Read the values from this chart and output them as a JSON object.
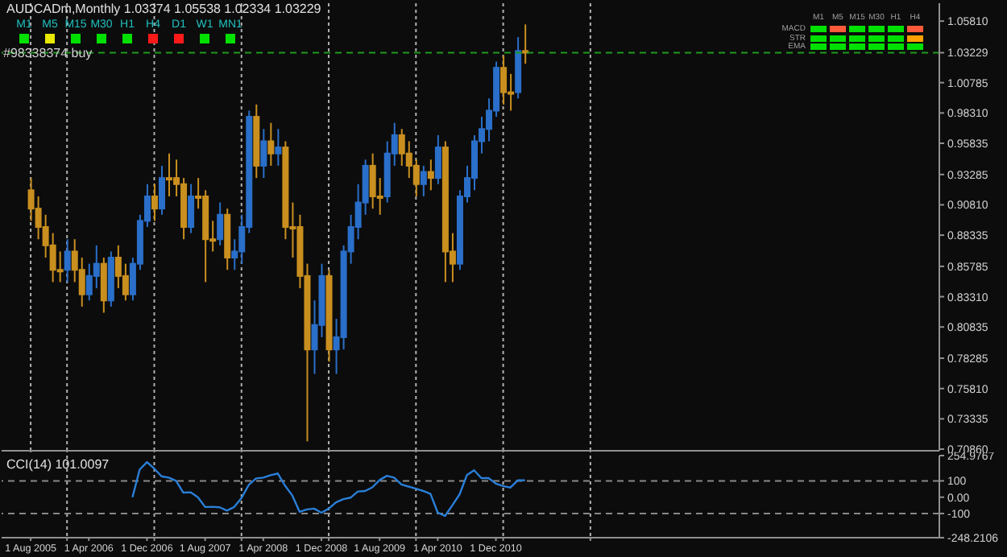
{
  "chart_data": [
    {
      "type": "candlestick",
      "title": "AUDCADm,Monthly  1.03374 1.05538 1.02334 1.03229",
      "annotations": [
        "M1",
        "M5",
        "M15",
        "M30",
        "H1",
        "H4",
        "D1",
        "W1",
        "MN1",
        "M1",
        "M5",
        "M15",
        "M30",
        "H1",
        "H4",
        "MACD",
        "STR",
        "EMA"
      ],
      "x": [
        "2005-08",
        "2005-09",
        "2005-10",
        "2005-11",
        "2005-12",
        "2006-01",
        "2006-02",
        "2006-03",
        "2006-04",
        "2006-05",
        "2006-06",
        "2006-07",
        "2006-08",
        "2006-09",
        "2006-10",
        "2006-11",
        "2006-12",
        "2007-01",
        "2007-02",
        "2007-03",
        "2007-04",
        "2007-05",
        "2007-06",
        "2007-07",
        "2007-08",
        "2007-09",
        "2007-10",
        "2007-11",
        "2007-12",
        "2008-01",
        "2008-02",
        "2008-03",
        "2008-04",
        "2008-05",
        "2008-06",
        "2008-07",
        "2008-08",
        "2008-09",
        "2008-10",
        "2008-11",
        "2008-12",
        "2009-01",
        "2009-02",
        "2009-03",
        "2009-04",
        "2009-05",
        "2009-06",
        "2009-07",
        "2009-08",
        "2009-09",
        "2009-10",
        "2009-11",
        "2009-12",
        "2010-01",
        "2010-02",
        "2010-03",
        "2010-04",
        "2010-05",
        "2010-06",
        "2010-07",
        "2010-08",
        "2010-09",
        "2010-10",
        "2010-11",
        "2010-12",
        "2011-01",
        "2011-02",
        "2011-03",
        "2011-04"
      ],
      "ohlc": [
        [
          0.92,
          0.93,
          0.895,
          0.905
        ],
        [
          0.905,
          0.915,
          0.88,
          0.89
        ],
        [
          0.89,
          0.9,
          0.865,
          0.875
        ],
        [
          0.875,
          0.885,
          0.845,
          0.855
        ],
        [
          0.855,
          0.87,
          0.845,
          0.855
        ],
        [
          0.855,
          0.88,
          0.845,
          0.87
        ],
        [
          0.87,
          0.88,
          0.845,
          0.855
        ],
        [
          0.855,
          0.865,
          0.825,
          0.835
        ],
        [
          0.835,
          0.86,
          0.83,
          0.85
        ],
        [
          0.85,
          0.875,
          0.84,
          0.86
        ],
        [
          0.86,
          0.865,
          0.82,
          0.83
        ],
        [
          0.83,
          0.87,
          0.825,
          0.865
        ],
        [
          0.865,
          0.875,
          0.84,
          0.85
        ],
        [
          0.85,
          0.86,
          0.83,
          0.835
        ],
        [
          0.835,
          0.865,
          0.83,
          0.86
        ],
        [
          0.86,
          0.9,
          0.855,
          0.895
        ],
        [
          0.895,
          0.925,
          0.89,
          0.915
        ],
        [
          0.915,
          0.925,
          0.895,
          0.905
        ],
        [
          0.905,
          0.94,
          0.9,
          0.93
        ],
        [
          0.93,
          0.95,
          0.915,
          0.93
        ],
        [
          0.93,
          0.945,
          0.915,
          0.925
        ],
        [
          0.925,
          0.93,
          0.88,
          0.89
        ],
        [
          0.89,
          0.925,
          0.885,
          0.915
        ],
        [
          0.915,
          0.93,
          0.905,
          0.915
        ],
        [
          0.915,
          0.92,
          0.845,
          0.88
        ],
        [
          0.88,
          0.895,
          0.87,
          0.88
        ],
        [
          0.88,
          0.91,
          0.875,
          0.9
        ],
        [
          0.9,
          0.905,
          0.855,
          0.865
        ],
        [
          0.865,
          0.88,
          0.855,
          0.87
        ],
        [
          0.87,
          0.9,
          0.86,
          0.89
        ],
        [
          0.89,
          0.985,
          0.885,
          0.98
        ],
        [
          0.98,
          0.99,
          0.93,
          0.94
        ],
        [
          0.94,
          0.97,
          0.93,
          0.96
        ],
        [
          0.96,
          0.975,
          0.94,
          0.95
        ],
        [
          0.95,
          0.97,
          0.94,
          0.955
        ],
        [
          0.955,
          0.96,
          0.88,
          0.89
        ],
        [
          0.89,
          0.91,
          0.865,
          0.89
        ],
        [
          0.89,
          0.9,
          0.84,
          0.85
        ],
        [
          0.85,
          0.86,
          0.715,
          0.79
        ],
        [
          0.79,
          0.83,
          0.77,
          0.81
        ],
        [
          0.81,
          0.86,
          0.8,
          0.85
        ],
        [
          0.85,
          0.855,
          0.78,
          0.79
        ],
        [
          0.79,
          0.815,
          0.77,
          0.8
        ],
        [
          0.8,
          0.875,
          0.79,
          0.87
        ],
        [
          0.87,
          0.9,
          0.86,
          0.89
        ],
        [
          0.89,
          0.925,
          0.88,
          0.91
        ],
        [
          0.91,
          0.945,
          0.9,
          0.94
        ],
        [
          0.94,
          0.95,
          0.905,
          0.915
        ],
        [
          0.915,
          0.93,
          0.9,
          0.915
        ],
        [
          0.915,
          0.96,
          0.91,
          0.95
        ],
        [
          0.95,
          0.975,
          0.94,
          0.965
        ],
        [
          0.965,
          0.97,
          0.94,
          0.95
        ],
        [
          0.95,
          0.96,
          0.93,
          0.94
        ],
        [
          0.94,
          0.945,
          0.915,
          0.925
        ],
        [
          0.925,
          0.94,
          0.915,
          0.935
        ],
        [
          0.935,
          0.945,
          0.92,
          0.93
        ],
        [
          0.93,
          0.965,
          0.925,
          0.955
        ],
        [
          0.955,
          0.96,
          0.845,
          0.87
        ],
        [
          0.87,
          0.885,
          0.845,
          0.86
        ],
        [
          0.86,
          0.92,
          0.855,
          0.915
        ],
        [
          0.915,
          0.94,
          0.91,
          0.93
        ],
        [
          0.93,
          0.965,
          0.92,
          0.96
        ],
        [
          0.96,
          0.98,
          0.95,
          0.97
        ],
        [
          0.97,
          0.995,
          0.96,
          0.985
        ],
        [
          0.985,
          1.025,
          0.98,
          1.02
        ],
        [
          1.02,
          1.03,
          0.99,
          1.0
        ],
        [
          1.0,
          1.015,
          0.985,
          1.0
        ],
        [
          1.0,
          1.045,
          0.995,
          1.0337
        ],
        [
          1.03374,
          1.05538,
          1.02334,
          1.03229
        ]
      ],
      "colors": [
        "#c98f1f",
        "#c98f1f",
        "#c98f1f",
        "#c98f1f",
        "#c98f1f",
        "#2a6fc9",
        "#c98f1f",
        "#c98f1f",
        "#2a6fc9",
        "#2a6fc9",
        "#c98f1f",
        "#2a6fc9",
        "#c98f1f",
        "#c98f1f",
        "#2a6fc9",
        "#2a6fc9",
        "#2a6fc9",
        "#c98f1f",
        "#2a6fc9",
        "#c98f1f",
        "#c98f1f",
        "#c98f1f",
        "#2a6fc9",
        "#c98f1f",
        "#c98f1f",
        "#c98f1f",
        "#2a6fc9",
        "#c98f1f",
        "#2a6fc9",
        "#2a6fc9",
        "#2a6fc9",
        "#c98f1f",
        "#2a6fc9",
        "#c98f1f",
        "#2a6fc9",
        "#c98f1f",
        "#c98f1f",
        "#c98f1f",
        "#c98f1f",
        "#2a6fc9",
        "#2a6fc9",
        "#c98f1f",
        "#2a6fc9",
        "#2a6fc9",
        "#2a6fc9",
        "#2a6fc9",
        "#2a6fc9",
        "#c98f1f",
        "#c98f1f",
        "#2a6fc9",
        "#2a6fc9",
        "#c98f1f",
        "#c98f1f",
        "#c98f1f",
        "#2a6fc9",
        "#c98f1f",
        "#2a6fc9",
        "#c98f1f",
        "#c98f1f",
        "#2a6fc9",
        "#2a6fc9",
        "#2a6fc9",
        "#2a6fc9",
        "#2a6fc9",
        "#2a6fc9",
        "#c98f1f",
        "#c98f1f",
        "#2a6fc9",
        "#c98f1f"
      ],
      "xlim": [
        "2005-04",
        "2016-01"
      ],
      "xticks": [
        {
          "value": "2005-08",
          "label": null
        },
        {
          "value": "2006-01",
          "label": null
        },
        {
          "value": "2007-01",
          "label": null
        },
        {
          "value": "2008-01",
          "label": null
        },
        {
          "value": "2009-01",
          "label": null
        },
        {
          "value": "2010-01",
          "label": null
        },
        {
          "value": "2011-01",
          "label": null
        },
        {
          "value": "2012-01",
          "label": null
        }
      ],
      "ylim": [
        0.7073,
        1.0727
      ],
      "yticks": [
        {
          "value": 1.0581,
          "label": "1.05810"
        },
        {
          "value": 1.03229,
          "label": "1.03229"
        },
        {
          "value": 1.00785,
          "label": "1.00785"
        },
        {
          "value": 0.9831,
          "label": "0.98310"
        },
        {
          "value": 0.95835,
          "label": "0.95835"
        },
        {
          "value": 0.93285,
          "label": "0.93285"
        },
        {
          "value": 0.9081,
          "label": "0.90810"
        },
        {
          "value": 0.88335,
          "label": "0.88335"
        },
        {
          "value": 0.85785,
          "label": "0.85785"
        },
        {
          "value": 0.8331,
          "label": "0.83310"
        },
        {
          "value": 0.80835,
          "label": "0.80835"
        },
        {
          "value": 0.78285,
          "label": "0.78285"
        },
        {
          "value": 0.7581,
          "label": "0.75810"
        },
        {
          "value": 0.73335,
          "label": "0.73335"
        },
        {
          "value": 0.7086,
          "label": "0.70860"
        }
      ],
      "ref_lines": [
        {
          "axis": "y",
          "value": 1.03229,
          "label": "#98338374 buy",
          "color": "#1f9a1f",
          "line_style": "dashed"
        }
      ],
      "grid": "x",
      "tick_labels": "y"
    },
    {
      "type": "line",
      "title": "CCI(14) 101.0097",
      "series": [
        {
          "color": "#2a7fd8",
          "x": [
            "2006-10",
            "2006-11",
            "2006-12",
            "2007-01",
            "2007-02",
            "2007-03",
            "2007-04",
            "2007-05",
            "2007-06",
            "2007-07",
            "2007-08",
            "2007-09",
            "2007-10",
            "2007-11",
            "2007-12",
            "2008-01",
            "2008-02",
            "2008-03",
            "2008-04",
            "2008-05",
            "2008-06",
            "2008-07",
            "2008-08",
            "2008-09",
            "2008-10",
            "2008-11",
            "2008-12",
            "2009-01",
            "2009-02",
            "2009-03",
            "2009-04",
            "2009-05",
            "2009-06",
            "2009-07",
            "2009-08",
            "2009-09",
            "2009-10",
            "2009-11",
            "2009-12",
            "2010-01",
            "2010-02",
            "2010-03",
            "2010-04",
            "2010-05",
            "2010-06",
            "2010-07",
            "2010-08",
            "2010-09",
            "2010-10",
            "2010-11",
            "2010-12",
            "2011-01",
            "2011-02",
            "2011-03",
            "2011-04"
          ],
          "values": [
            0,
            170,
            215,
            175,
            128,
            120,
            100,
            28,
            30,
            0,
            -60,
            -59,
            -62,
            -82,
            -60,
            -5,
            75,
            115,
            120,
            135,
            145,
            70,
            10,
            -90,
            -75,
            -70,
            -95,
            -70,
            -32,
            -12,
            -3,
            35,
            38,
            60,
            105,
            131,
            120,
            78,
            65,
            52,
            38,
            20,
            -95,
            -115,
            -50,
            17,
            135,
            165,
            117,
            117,
            83,
            68,
            59,
            103,
            103
          ]
        }
      ],
      "xlim": [
        "2005-04",
        "2016-01"
      ],
      "xticks": [
        {
          "value": "2005-08",
          "label": "1 Aug 2005"
        },
        {
          "value": "2006-01",
          "label": null
        },
        {
          "value": "2006-04",
          "label": "1 Apr 2006"
        },
        {
          "value": "2006-12",
          "label": "1 Dec 2006"
        },
        {
          "value": "2007-01",
          "label": null
        },
        {
          "value": "2007-08",
          "label": "1 Aug 2007"
        },
        {
          "value": "2008-01",
          "label": null
        },
        {
          "value": "2008-04",
          "label": "1 Apr 2008"
        },
        {
          "value": "2008-12",
          "label": "1 Dec 2008"
        },
        {
          "value": "2009-01",
          "label": null
        },
        {
          "value": "2009-08",
          "label": "1 Aug 2009"
        },
        {
          "value": "2010-01",
          "label": null
        },
        {
          "value": "2010-04",
          "label": "1 Apr 2010"
        },
        {
          "value": "2010-12",
          "label": "1 Dec 2010"
        },
        {
          "value": "2011-01",
          "label": null
        },
        {
          "value": "2012-01",
          "label": null
        }
      ],
      "ylim": [
        -248.2106,
        254.9767
      ],
      "yticks": [
        {
          "value": 254.9767,
          "label": "254.9767"
        },
        100,
        {
          "value": 0,
          "label": "0.00"
        },
        -100,
        {
          "value": -248.2106,
          "label": "-248.2106"
        }
      ],
      "ref_lines": [
        {
          "axis": "y",
          "value": 100,
          "color": "#888888",
          "line_style": "dashed"
        },
        {
          "axis": "y",
          "value": -100,
          "color": "#888888",
          "line_style": "dashed"
        }
      ],
      "grid": "x",
      "marker": "none",
      "line_style": "solid"
    }
  ]
}
